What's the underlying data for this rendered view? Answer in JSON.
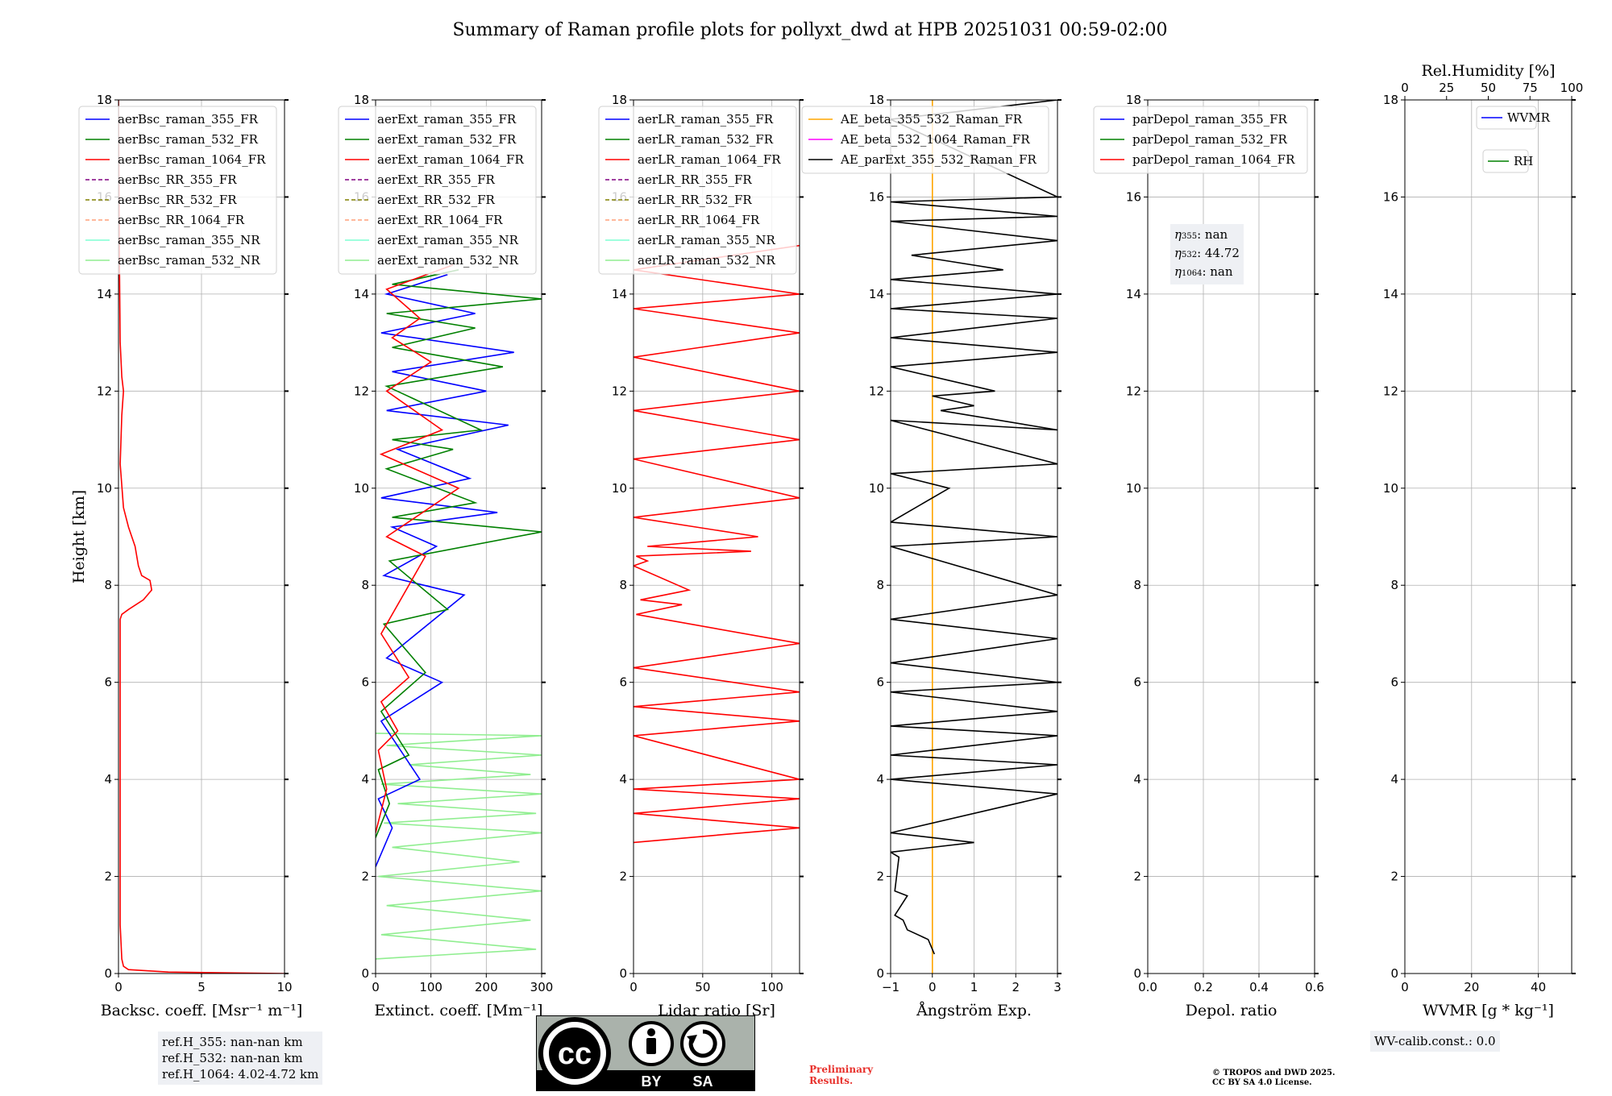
{
  "title": "Summary of Raman profile plots for pollyxt_dwd at HPB 20251031 00:59-02:00",
  "colors": {
    "blue": "#0000ff",
    "green": "#008000",
    "red": "#ff0000",
    "purple": "#800080",
    "olive": "#808000",
    "salmon": "#ffa07a",
    "aqua": "#7fffd4",
    "lightgreen": "#90ee90",
    "orange": "#ffa500",
    "magenta": "#ff00ff",
    "black": "#000000"
  },
  "chart_data": [
    {
      "type": "line",
      "id": "backscatter",
      "xlabel": "Backsc. coeff. [Msr⁻¹ m⁻¹]",
      "ylabel": "Height [km]",
      "xlim": [
        0,
        10
      ],
      "ylim": [
        0,
        18
      ],
      "xticks": [
        0,
        5,
        10
      ],
      "yticks": [
        0,
        2,
        4,
        6,
        8,
        10,
        12,
        14,
        16,
        18
      ],
      "grid": true,
      "legend_position": "top-left",
      "legend": [
        {
          "label": "aerBsc_raman_355_FR",
          "color": "blue",
          "dash": false
        },
        {
          "label": "aerBsc_raman_532_FR",
          "color": "green",
          "dash": false
        },
        {
          "label": "aerBsc_raman_1064_FR",
          "color": "red",
          "dash": false
        },
        {
          "label": "aerBsc_RR_355_FR",
          "color": "purple",
          "dash": true
        },
        {
          "label": "aerBsc_RR_532_FR",
          "color": "olive",
          "dash": true
        },
        {
          "label": "aerBsc_RR_1064_FR",
          "color": "salmon",
          "dash": true
        },
        {
          "label": "aerBsc_raman_355_NR",
          "color": "aqua",
          "dash": false
        },
        {
          "label": "aerBsc_raman_532_NR",
          "color": "lightgreen",
          "dash": false
        }
      ],
      "series": [
        {
          "name": "aerBsc_raman_1064_FR",
          "color": "red",
          "x": [
            10.0,
            3.0,
            0.6,
            0.3,
            0.2,
            0.1,
            0.1,
            0.1,
            0.1,
            0.1,
            0.1,
            0.2,
            0.6,
            1.5,
            2.0,
            1.9,
            1.4,
            1.2,
            1.0,
            0.6,
            0.3,
            0.1,
            0.2,
            0.3,
            0.2,
            0.1,
            0.05,
            0.0
          ],
          "y": [
            0.0,
            0.03,
            0.08,
            0.15,
            0.3,
            1.0,
            3.0,
            5.0,
            6.5,
            7.2,
            7.3,
            7.4,
            7.5,
            7.7,
            7.9,
            8.1,
            8.2,
            8.4,
            8.8,
            9.2,
            9.6,
            10.5,
            11.5,
            12.0,
            12.3,
            13.0,
            15.0,
            18.0
          ]
        }
      ]
    },
    {
      "type": "line",
      "id": "extinction",
      "xlabel": "Extinct. coeff. [Mm⁻¹]",
      "xlim": [
        0,
        300
      ],
      "ylim": [
        0,
        18
      ],
      "xticks": [
        0,
        100,
        200,
        300
      ],
      "yticks": [
        0,
        2,
        4,
        6,
        8,
        10,
        12,
        14,
        16,
        18
      ],
      "grid": true,
      "legend_position": "top-left",
      "legend": [
        {
          "label": "aerExt_raman_355_FR",
          "color": "blue",
          "dash": false
        },
        {
          "label": "aerExt_raman_532_FR",
          "color": "green",
          "dash": false
        },
        {
          "label": "aerExt_raman_1064_FR",
          "color": "red",
          "dash": false
        },
        {
          "label": "aerExt_RR_355_FR",
          "color": "purple",
          "dash": true
        },
        {
          "label": "aerExt_RR_532_FR",
          "color": "olive",
          "dash": true
        },
        {
          "label": "aerExt_RR_1064_FR",
          "color": "salmon",
          "dash": true
        },
        {
          "label": "aerExt_raman_355_NR",
          "color": "aqua",
          "dash": false
        },
        {
          "label": "aerExt_raman_532_NR",
          "color": "lightgreen",
          "dash": false
        }
      ],
      "series": [
        {
          "name": "aerExt_raman_532_NR",
          "color": "lightgreen",
          "x": [
            0,
            290,
            10,
            280,
            20,
            300,
            5,
            260,
            30,
            300,
            15,
            290,
            40,
            300,
            10,
            280,
            60,
            300,
            20,
            300,
            0
          ],
          "y": [
            0.3,
            0.5,
            0.8,
            1.1,
            1.4,
            1.7,
            2.0,
            2.3,
            2.6,
            2.9,
            3.1,
            3.3,
            3.5,
            3.7,
            3.9,
            4.1,
            4.3,
            4.5,
            4.7,
            4.9,
            4.95
          ]
        },
        {
          "name": "aerExt_raman_355_FR",
          "color": "blue",
          "x": [
            0,
            30,
            5,
            80,
            10,
            120,
            20,
            160,
            15,
            110,
            30,
            220,
            10,
            170,
            40,
            240,
            20,
            200,
            30,
            250,
            10,
            180,
            20,
            130
          ],
          "y": [
            2.2,
            3.0,
            3.6,
            4.0,
            5.2,
            6.0,
            6.5,
            7.8,
            8.2,
            8.8,
            9.2,
            9.5,
            9.8,
            10.2,
            10.8,
            11.3,
            11.6,
            12.0,
            12.4,
            12.8,
            13.2,
            13.6,
            14.0,
            14.4
          ]
        },
        {
          "name": "aerExt_raman_532_FR",
          "color": "green",
          "x": [
            0,
            25,
            5,
            60,
            10,
            90,
            15,
            130,
            25,
            300,
            30,
            180,
            20,
            140,
            30,
            190,
            20,
            230,
            30,
            180,
            20,
            300,
            30,
            150
          ],
          "y": [
            2.8,
            3.5,
            4.2,
            4.5,
            5.4,
            6.2,
            7.2,
            7.5,
            8.5,
            9.1,
            9.4,
            9.7,
            10.4,
            10.8,
            11.0,
            11.2,
            12.1,
            12.5,
            12.9,
            13.3,
            13.6,
            13.9,
            14.2,
            14.5
          ]
        },
        {
          "name": "aerExt_raman_1064_FR",
          "color": "red",
          "x": [
            0,
            20,
            5,
            40,
            10,
            60,
            10,
            90,
            20,
            150,
            10,
            120,
            20,
            100,
            30,
            80,
            20,
            140
          ],
          "y": [
            2.9,
            3.8,
            4.6,
            5.0,
            5.6,
            6.1,
            7.0,
            8.6,
            9.0,
            10.0,
            10.7,
            11.2,
            12.0,
            12.6,
            13.1,
            13.5,
            14.1,
            14.6
          ]
        }
      ]
    },
    {
      "type": "line",
      "id": "lidar_ratio",
      "xlabel": "Lidar ratio [Sr]",
      "xlim": [
        0,
        120
      ],
      "ylim": [
        0,
        18
      ],
      "xticks": [
        0,
        50,
        100
      ],
      "yticks": [
        0,
        2,
        4,
        6,
        8,
        10,
        12,
        14,
        16,
        18
      ],
      "grid": true,
      "legend_position": "top-left",
      "legend": [
        {
          "label": "aerLR_raman_355_FR",
          "color": "blue",
          "dash": false
        },
        {
          "label": "aerLR_raman_532_FR",
          "color": "green",
          "dash": false
        },
        {
          "label": "aerLR_raman_1064_FR",
          "color": "red",
          "dash": false
        },
        {
          "label": "aerLR_RR_355_FR",
          "color": "purple",
          "dash": true
        },
        {
          "label": "aerLR_RR_532_FR",
          "color": "olive",
          "dash": true
        },
        {
          "label": "aerLR_RR_1064_FR",
          "color": "salmon",
          "dash": true
        },
        {
          "label": "aerLR_raman_355_NR",
          "color": "aqua",
          "dash": false
        },
        {
          "label": "aerLR_raman_532_NR",
          "color": "lightgreen",
          "dash": false
        }
      ],
      "series": [
        {
          "name": "aerLR_raman_1064_FR",
          "color": "red",
          "x": [
            0,
            120,
            0,
            120,
            0,
            120,
            0,
            120,
            0,
            120,
            0,
            120,
            2,
            35,
            5,
            40,
            0,
            10,
            2,
            85,
            10,
            90,
            0,
            120,
            0,
            120,
            0,
            120,
            0,
            120,
            0,
            120,
            0,
            120
          ],
          "y": [
            2.7,
            3.0,
            3.3,
            3.6,
            3.8,
            4.0,
            4.9,
            5.2,
            5.5,
            5.8,
            6.3,
            6.8,
            7.4,
            7.6,
            7.7,
            7.9,
            8.4,
            8.5,
            8.6,
            8.7,
            8.8,
            9.0,
            9.4,
            9.8,
            10.6,
            11.0,
            11.6,
            12.0,
            12.7,
            13.2,
            13.7,
            14.0,
            14.5,
            15.0
          ]
        }
      ]
    },
    {
      "type": "line",
      "id": "angstrom",
      "xlabel": "Ångström Exp.",
      "xlim": [
        -1,
        3
      ],
      "ylim": [
        0,
        18
      ],
      "xticks": [
        -1,
        0,
        1,
        2,
        3
      ],
      "yticks": [
        0,
        2,
        4,
        6,
        8,
        10,
        12,
        14,
        16,
        18
      ],
      "grid": true,
      "legend_position": "top-right",
      "legend": [
        {
          "label": "AE_beta_355_532_Raman_FR",
          "color": "orange",
          "dash": false
        },
        {
          "label": "AE_beta_532_1064_Raman_FR",
          "color": "magenta",
          "dash": false
        },
        {
          "label": "AE_parExt_355_532_Raman_FR",
          "color": "black",
          "dash": false
        }
      ],
      "series": [
        {
          "name": "AE_beta_355_532_Raman_FR",
          "color": "orange",
          "x": [
            0.0,
            0.0
          ],
          "y": [
            0.0,
            18.0
          ]
        },
        {
          "name": "AE_parExt_355_532_Raman_FR",
          "color": "black",
          "x": [
            0.05,
            -0.1,
            -0.6,
            -0.7,
            -0.9,
            -0.6,
            -0.9,
            -0.8,
            -1.0,
            1.0,
            -1.0,
            3.0,
            -1.0,
            3.0,
            -1.0,
            3.0,
            -1.0,
            3.0,
            -1.0,
            3.0,
            -1.0,
            3.0,
            -1.0,
            3.0,
            -1.0,
            3.0,
            -1.0,
            0.4,
            -1.0,
            3.0,
            -1.0,
            3.0,
            0.2,
            1.0,
            0.0,
            1.5,
            -1.0,
            3.0,
            -1.0,
            3.0,
            -1.0,
            3.0,
            -1.0,
            1.7,
            -0.5,
            3.0,
            -1.0,
            3.0,
            -1.0,
            3.0,
            -1.0,
            3.0
          ],
          "y": [
            0.4,
            0.7,
            0.9,
            1.1,
            1.2,
            1.6,
            1.7,
            2.4,
            2.5,
            2.7,
            2.9,
            3.7,
            4.0,
            4.3,
            4.5,
            4.9,
            5.1,
            5.4,
            5.8,
            6.0,
            6.4,
            6.9,
            7.3,
            7.8,
            8.8,
            9.0,
            9.3,
            10.0,
            10.3,
            10.5,
            11.4,
            11.2,
            11.6,
            11.7,
            11.9,
            12.0,
            12.5,
            12.8,
            13.1,
            13.5,
            13.7,
            14.0,
            14.3,
            14.5,
            14.8,
            15.1,
            15.5,
            15.6,
            15.9,
            16.0,
            17.6,
            18.0
          ]
        }
      ]
    },
    {
      "type": "line",
      "id": "depol",
      "xlabel": "Depol. ratio",
      "xlim": [
        0,
        0.6
      ],
      "ylim": [
        0,
        18
      ],
      "xticks": [
        0.0,
        0.2,
        0.4,
        0.6
      ],
      "yticks": [
        0,
        2,
        4,
        6,
        8,
        10,
        12,
        14,
        16,
        18
      ],
      "grid": true,
      "legend_position": "top-left",
      "legend": [
        {
          "label": "parDepol_raman_355_FR",
          "color": "blue",
          "dash": false
        },
        {
          "label": "parDepol_raman_532_FR",
          "color": "green",
          "dash": false
        },
        {
          "label": "parDepol_raman_1064_FR",
          "color": "red",
          "dash": false
        }
      ],
      "annotation": {
        "eta355": "nan",
        "eta532": "44.72",
        "eta1064": "nan"
      },
      "series": []
    },
    {
      "type": "line",
      "id": "wvmr",
      "xlabel": "WVMR [g * kg⁻¹]",
      "top_xlabel": "Rel.Humidity [%]",
      "xlim": [
        0,
        50
      ],
      "top_xlim": [
        0,
        100
      ],
      "ylim": [
        0,
        18
      ],
      "xticks": [
        0,
        20,
        40
      ],
      "top_xticks": [
        0,
        25,
        50,
        75,
        100
      ],
      "yticks": [
        0,
        2,
        4,
        6,
        8,
        10,
        12,
        14,
        16,
        18
      ],
      "grid": true,
      "legend_position": "top-right",
      "legend": [
        {
          "label": "WVMR",
          "color": "blue",
          "dash": false
        },
        {
          "label": "RH",
          "color": "green",
          "dash": false
        }
      ],
      "series": []
    }
  ],
  "ref_box": {
    "line1": "ref.H_355: nan-nan km",
    "line2": "ref.H_532: nan-nan km",
    "line3": "ref.H_1064: 4.02-4.72 km"
  },
  "wv_box": "WV-calib.const.: 0.0",
  "eta": {
    "l355_label": "355",
    "l355_value": ": nan",
    "l532_label": "532",
    "l532_value": ": 44.72",
    "l1064_label": "1064",
    "l1064_value": ": nan"
  },
  "license": {
    "by": "BY",
    "sa": "SA",
    "cc": "cc"
  },
  "preliminary": {
    "line1": "Preliminary",
    "line2": "Results."
  },
  "copyright": {
    "line1": "© TROPOS and DWD 2025.",
    "line2": "CC BY SA 4.0 License."
  }
}
